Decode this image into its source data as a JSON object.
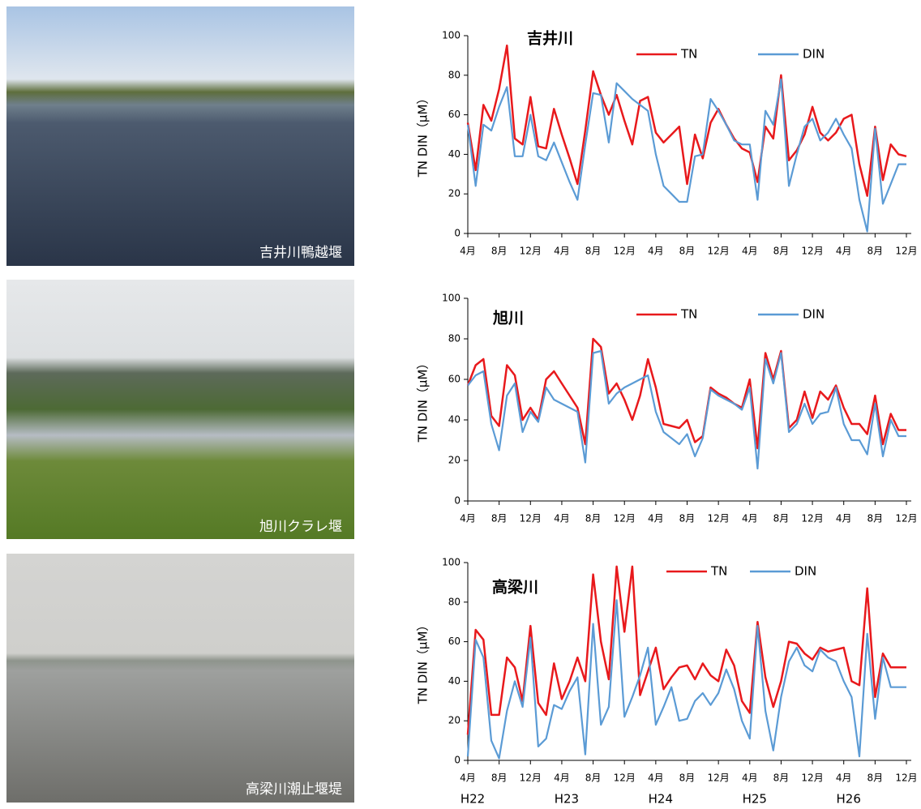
{
  "photos": [
    "吉井川鴨越堰",
    "旭川クラレ堰",
    "高梁川潮止堰堤"
  ],
  "chart_data": [
    {
      "type": "line",
      "title": "吉井川",
      "y_label": "TN DIN（μM）",
      "x": [
        0,
        1,
        2,
        3,
        4,
        5,
        6,
        7,
        8,
        9,
        10,
        11,
        12,
        13,
        14,
        15,
        16,
        17,
        18,
        19,
        20,
        21,
        22,
        23,
        24,
        25,
        26,
        27,
        28,
        29,
        30,
        31,
        32,
        33,
        34,
        35,
        36,
        37,
        38,
        39,
        40,
        41,
        42,
        43,
        44,
        45,
        46,
        47,
        48,
        49,
        50,
        51,
        52,
        53,
        54,
        55,
        56
      ],
      "xlim": [
        0,
        56
      ],
      "xticks": [
        {
          "value": 0,
          "label": "4月"
        },
        {
          "value": 4,
          "label": "8月"
        },
        {
          "value": 8,
          "label": "12月"
        },
        {
          "value": 12,
          "label": "4月"
        },
        {
          "value": 16,
          "label": "8月"
        },
        {
          "value": 20,
          "label": "12月"
        },
        {
          "value": 24,
          "label": "4月"
        },
        {
          "value": 28,
          "label": "8月"
        },
        {
          "value": 32,
          "label": "12月"
        },
        {
          "value": 36,
          "label": "4月"
        },
        {
          "value": 40,
          "label": "8月"
        },
        {
          "value": 44,
          "label": "12月"
        },
        {
          "value": 48,
          "label": "4月"
        },
        {
          "value": 52,
          "label": "8月"
        },
        {
          "value": 56,
          "label": "12月"
        }
      ],
      "ylim": [
        0,
        100
      ],
      "yticks": [
        0,
        20,
        40,
        60,
        80,
        100
      ],
      "series": [
        {
          "name": "TN",
          "color": "#e8191c",
          "values": [
            56,
            32,
            65,
            57,
            73,
            95,
            48,
            45,
            69,
            44,
            43,
            63,
            50,
            38,
            25,
            52,
            82,
            70,
            60,
            70,
            57,
            45,
            67,
            69,
            51,
            46,
            50,
            54,
            25,
            50,
            38,
            56,
            63,
            55,
            48,
            43,
            41,
            26,
            54,
            48,
            80,
            37,
            42,
            50,
            64,
            51,
            47,
            51,
            58,
            60,
            35,
            19,
            54,
            27,
            45,
            40,
            39
          ]
        },
        {
          "name": "DIN",
          "color": "#5b9bd5",
          "values": [
            55,
            24,
            55,
            52,
            64,
            74,
            39,
            39,
            60,
            39,
            37,
            46,
            36,
            26,
            17,
            45,
            71,
            70,
            46,
            76,
            72,
            68,
            65,
            62,
            40,
            24,
            20,
            16,
            16,
            39,
            40,
            68,
            62,
            55,
            47,
            45,
            45,
            17,
            62,
            55,
            78,
            24,
            40,
            54,
            58,
            47,
            51,
            58,
            50,
            43,
            17,
            1,
            53,
            15,
            25,
            35,
            35
          ]
        }
      ]
    },
    {
      "type": "line",
      "title": "旭川",
      "y_label": "TN DIN（μM）",
      "x": [
        0,
        1,
        2,
        3,
        4,
        5,
        6,
        7,
        8,
        9,
        10,
        11,
        12,
        13,
        14,
        15,
        16,
        17,
        18,
        19,
        20,
        21,
        22,
        23,
        24,
        25,
        26,
        27,
        28,
        29,
        30,
        31,
        32,
        33,
        34,
        35,
        36,
        37,
        38,
        39,
        40,
        41,
        42,
        43,
        44,
        45,
        46,
        47,
        48,
        49,
        50,
        51,
        52,
        53,
        54,
        55,
        56
      ],
      "xlim": [
        0,
        56
      ],
      "xticks": [
        {
          "value": 0,
          "label": "4月"
        },
        {
          "value": 4,
          "label": "8月"
        },
        {
          "value": 8,
          "label": "12月"
        },
        {
          "value": 12,
          "label": "4月"
        },
        {
          "value": 16,
          "label": "8月"
        },
        {
          "value": 20,
          "label": "12月"
        },
        {
          "value": 24,
          "label": "4月"
        },
        {
          "value": 28,
          "label": "8月"
        },
        {
          "value": 32,
          "label": "12月"
        },
        {
          "value": 36,
          "label": "4月"
        },
        {
          "value": 40,
          "label": "8月"
        },
        {
          "value": 44,
          "label": "12月"
        },
        {
          "value": 48,
          "label": "4月"
        },
        {
          "value": 52,
          "label": "8月"
        },
        {
          "value": 56,
          "label": "12月"
        }
      ],
      "ylim": [
        0,
        100
      ],
      "yticks": [
        0,
        20,
        40,
        60,
        80,
        100
      ],
      "series": [
        {
          "name": "TN",
          "color": "#e8191c",
          "values": [
            57,
            67,
            70,
            42,
            37,
            67,
            62,
            40,
            46,
            40,
            60,
            64,
            58,
            52,
            46,
            28,
            80,
            76,
            53,
            58,
            50,
            40,
            52,
            70,
            56,
            38,
            37,
            36,
            40,
            29,
            32,
            56,
            53,
            51,
            48,
            46,
            60,
            26,
            73,
            60,
            74,
            36,
            40,
            54,
            41,
            54,
            50,
            57,
            46,
            38,
            38,
            33,
            52,
            28,
            43,
            35,
            35
          ]
        },
        {
          "name": "DIN",
          "color": "#5b9bd5",
          "values": [
            57,
            62,
            64,
            38,
            25,
            52,
            58,
            34,
            44,
            39,
            56,
            50,
            48,
            46,
            44,
            19,
            73,
            74,
            48,
            53,
            56,
            58,
            60,
            62,
            44,
            34,
            31,
            28,
            33,
            22,
            31,
            55,
            52,
            50,
            48,
            45,
            56,
            16,
            70,
            58,
            73,
            34,
            38,
            48,
            38,
            43,
            44,
            56,
            38,
            30,
            30,
            23,
            48,
            22,
            40,
            32,
            32
          ]
        }
      ]
    },
    {
      "type": "line",
      "title": "高梁川",
      "y_label": "TN DIN（μM）",
      "x": [
        0,
        1,
        2,
        3,
        4,
        5,
        6,
        7,
        8,
        9,
        10,
        11,
        12,
        13,
        14,
        15,
        16,
        17,
        18,
        19,
        20,
        21,
        22,
        23,
        24,
        25,
        26,
        27,
        28,
        29,
        30,
        31,
        32,
        33,
        34,
        35,
        36,
        37,
        38,
        39,
        40,
        41,
        42,
        43,
        44,
        45,
        46,
        47,
        48,
        49,
        50,
        51,
        52,
        53,
        54,
        55,
        56
      ],
      "xlim": [
        0,
        56
      ],
      "xticks": [
        {
          "value": 0,
          "label": "4月"
        },
        {
          "value": 4,
          "label": "8月"
        },
        {
          "value": 8,
          "label": "12月"
        },
        {
          "value": 12,
          "label": "4月"
        },
        {
          "value": 16,
          "label": "8月"
        },
        {
          "value": 20,
          "label": "12月"
        },
        {
          "value": 24,
          "label": "4月"
        },
        {
          "value": 28,
          "label": "8月"
        },
        {
          "value": 32,
          "label": "12月"
        },
        {
          "value": 36,
          "label": "4月"
        },
        {
          "value": 40,
          "label": "8月"
        },
        {
          "value": 44,
          "label": "12月"
        },
        {
          "value": 48,
          "label": "4月"
        },
        {
          "value": 52,
          "label": "8月"
        },
        {
          "value": 56,
          "label": "12月"
        }
      ],
      "year_labels": [
        {
          "value": 0,
          "label": "H22"
        },
        {
          "value": 12,
          "label": "H23"
        },
        {
          "value": 24,
          "label": "H24"
        },
        {
          "value": 36,
          "label": "H25"
        },
        {
          "value": 48,
          "label": "H26"
        }
      ],
      "ylim": [
        0,
        100
      ],
      "yticks": [
        0,
        20,
        40,
        60,
        80,
        100
      ],
      "series": [
        {
          "name": "TN",
          "color": "#e8191c",
          "values": [
            13,
            66,
            61,
            23,
            23,
            52,
            47,
            30,
            68,
            29,
            23,
            49,
            31,
            40,
            52,
            40,
            94,
            60,
            41,
            98,
            65,
            98,
            33,
            45,
            57,
            36,
            42,
            47,
            48,
            41,
            49,
            43,
            40,
            56,
            48,
            30,
            24,
            70,
            42,
            27,
            40,
            60,
            59,
            54,
            51,
            57,
            55,
            56,
            57,
            40,
            38,
            87,
            32,
            54,
            47,
            47,
            47
          ]
        },
        {
          "name": "DIN",
          "color": "#5b9bd5",
          "values": [
            2,
            61,
            52,
            10,
            1,
            25,
            40,
            27,
            62,
            7,
            11,
            28,
            26,
            35,
            42,
            3,
            69,
            18,
            27,
            81,
            22,
            32,
            43,
            57,
            18,
            27,
            37,
            20,
            21,
            30,
            34,
            28,
            34,
            46,
            36,
            20,
            11,
            68,
            25,
            5,
            32,
            50,
            57,
            48,
            45,
            56,
            52,
            50,
            40,
            32,
            2,
            64,
            21,
            52,
            37,
            37,
            37
          ]
        }
      ]
    }
  ]
}
